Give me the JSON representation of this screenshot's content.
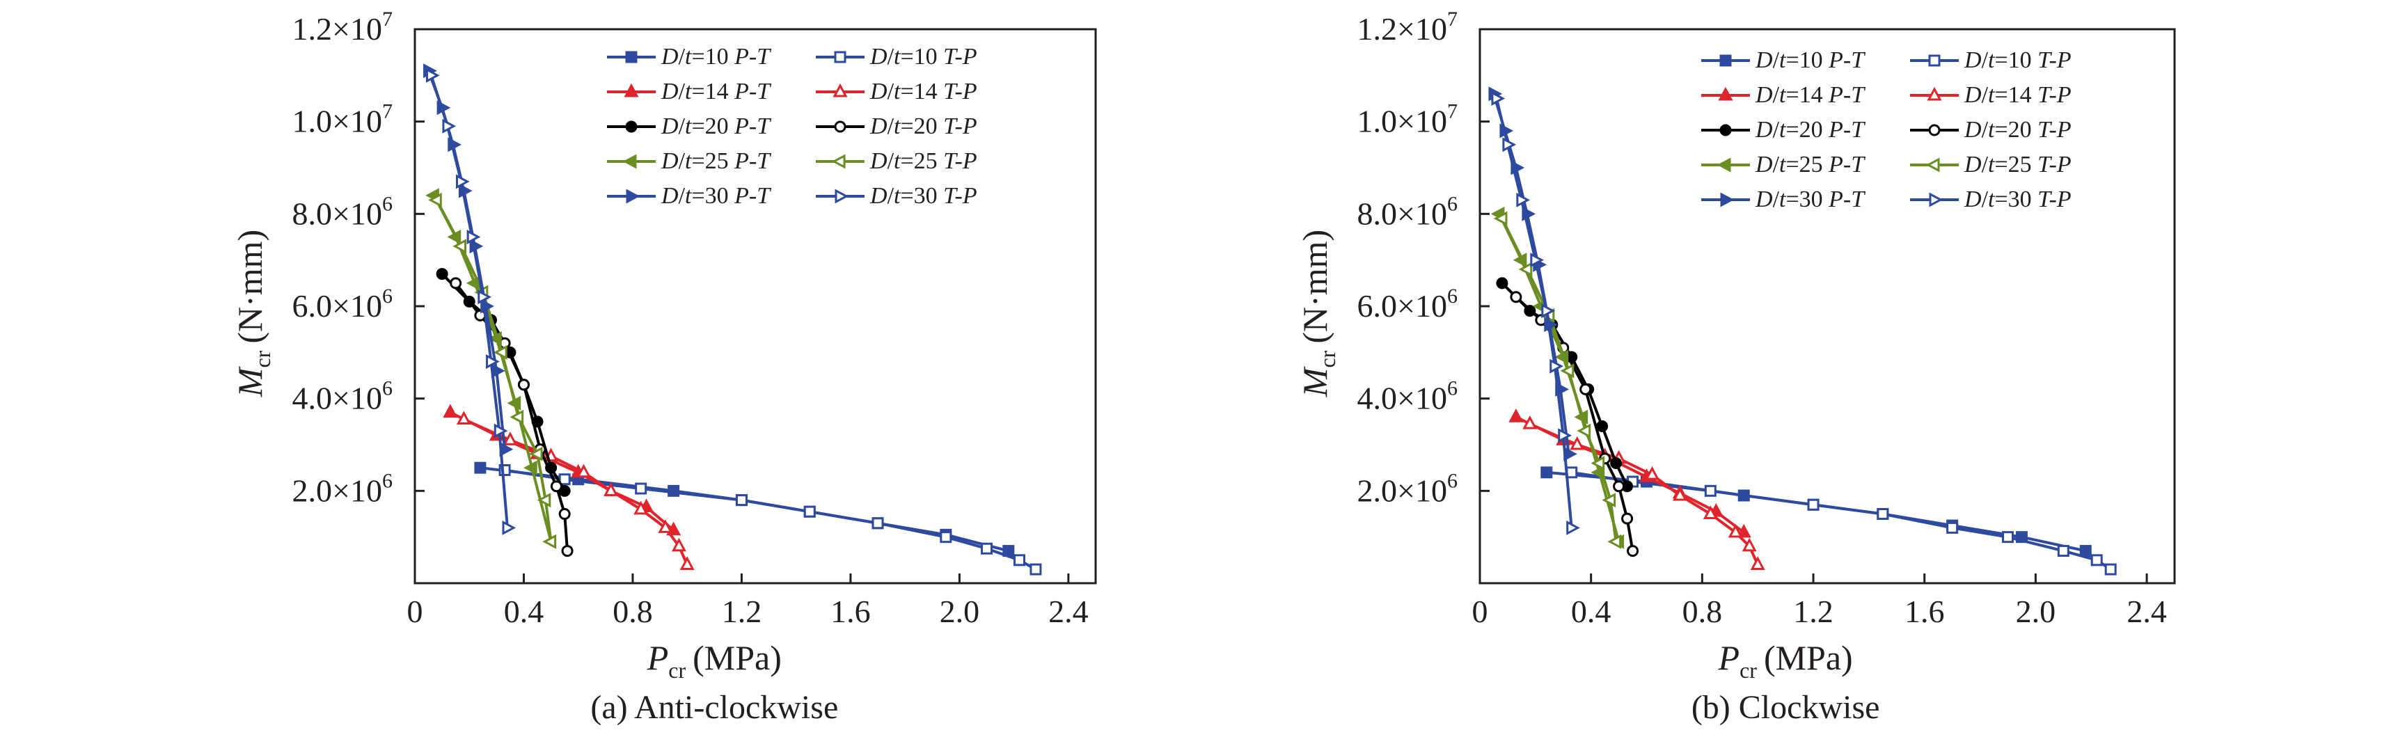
{
  "chart_data": [
    {
      "type": "line",
      "caption": "(a) Anti-clockwise",
      "xlabel": {
        "main": "P",
        "sub": "cr",
        "unit": "(MPa)"
      },
      "ylabel": {
        "main": "M",
        "sub": "cr",
        "unit": "(N·mm)"
      },
      "xlim": [
        0,
        2.5
      ],
      "ylim": [
        0,
        12000000
      ],
      "xticks": [
        {
          "v": 0,
          "label": "0"
        },
        {
          "v": 0.4,
          "label": "0.4"
        },
        {
          "v": 0.8,
          "label": "0.8"
        },
        {
          "v": 1.2,
          "label": "1.2"
        },
        {
          "v": 1.6,
          "label": "1.6"
        },
        {
          "v": 2.0,
          "label": "2.0"
        },
        {
          "v": 2.4,
          "label": "2.4"
        }
      ],
      "yticks": [
        {
          "v": 2000000,
          "mant": "2.0×10",
          "exp": "6"
        },
        {
          "v": 4000000,
          "mant": "4.0×10",
          "exp": "6"
        },
        {
          "v": 6000000,
          "mant": "6.0×10",
          "exp": "6"
        },
        {
          "v": 8000000,
          "mant": "8.0×10",
          "exp": "6"
        },
        {
          "v": 10000000,
          "mant": "1.0×10",
          "exp": "7"
        },
        {
          "v": 12000000,
          "mant": "1.2×10",
          "exp": "7"
        }
      ],
      "series": [
        {
          "name": "D/t=10 P-T",
          "dt": "10",
          "path": "P-T",
          "color": "#2e4a9e",
          "marker": "square",
          "filled": true,
          "x": [
            0.24,
            0.6,
            0.95,
            1.2,
            1.45,
            1.7,
            1.95,
            2.18
          ],
          "y": [
            2500000,
            2250000,
            2000000,
            1800000,
            1550000,
            1300000,
            1050000,
            700000
          ]
        },
        {
          "name": "D/t=10 T-P",
          "dt": "10",
          "path": "T-P",
          "color": "#2e4a9e",
          "marker": "square",
          "filled": false,
          "x": [
            0.33,
            0.55,
            0.83,
            1.2,
            1.45,
            1.7,
            1.95,
            2.1,
            2.22,
            2.28
          ],
          "y": [
            2450000,
            2250000,
            2050000,
            1800000,
            1550000,
            1300000,
            1000000,
            750000,
            500000,
            300000
          ]
        },
        {
          "name": "D/t=14 P-T",
          "dt": "14",
          "path": "P-T",
          "color": "#e0242b",
          "marker": "triangle",
          "filled": true,
          "x": [
            0.13,
            0.3,
            0.45,
            0.6,
            0.72,
            0.85,
            0.95
          ],
          "y": [
            3700000,
            3200000,
            2800000,
            2400000,
            2000000,
            1650000,
            1150000
          ]
        },
        {
          "name": "D/t=14 T-P",
          "dt": "14",
          "path": "T-P",
          "color": "#e0242b",
          "marker": "triangle",
          "filled": false,
          "x": [
            0.18,
            0.35,
            0.5,
            0.62,
            0.72,
            0.83,
            0.92,
            0.97,
            1.0
          ],
          "y": [
            3550000,
            3100000,
            2750000,
            2400000,
            2000000,
            1600000,
            1200000,
            800000,
            400000
          ]
        },
        {
          "name": "D/t=20 P-T",
          "dt": "20",
          "path": "P-T",
          "color": "#000000",
          "marker": "circle",
          "filled": true,
          "x": [
            0.1,
            0.2,
            0.28,
            0.35,
            0.4,
            0.45,
            0.5,
            0.55
          ],
          "y": [
            6700000,
            6100000,
            5700000,
            5000000,
            4300000,
            3500000,
            2500000,
            2000000
          ]
        },
        {
          "name": "D/t=20 T-P",
          "dt": "20",
          "path": "T-P",
          "color": "#000000",
          "marker": "circle",
          "filled": false,
          "x": [
            0.15,
            0.24,
            0.33,
            0.4,
            0.46,
            0.52,
            0.55,
            0.56
          ],
          "y": [
            6500000,
            5800000,
            5200000,
            4300000,
            2900000,
            2100000,
            1500000,
            700000
          ]
        },
        {
          "name": "D/t=25 P-T",
          "dt": "25",
          "path": "P-T",
          "color": "#6b8e23",
          "marker": "triangle-left",
          "filled": true,
          "x": [
            0.07,
            0.15,
            0.22,
            0.3,
            0.37,
            0.43,
            0.5
          ],
          "y": [
            8400000,
            7500000,
            6500000,
            5300000,
            3900000,
            2500000,
            900000
          ]
        },
        {
          "name": "D/t=25 T-P",
          "dt": "25",
          "path": "T-P",
          "color": "#6b8e23",
          "marker": "triangle-left",
          "filled": false,
          "x": [
            0.08,
            0.17,
            0.25,
            0.32,
            0.38,
            0.45,
            0.48,
            0.5
          ],
          "y": [
            8300000,
            7300000,
            6300000,
            5000000,
            3600000,
            2800000,
            1800000,
            900000
          ]
        },
        {
          "name": "D/t=30 P-T",
          "dt": "30",
          "path": "P-T",
          "color": "#2e4a9e",
          "marker": "triangle-right",
          "filled": true,
          "x": [
            0.05,
            0.1,
            0.14,
            0.18,
            0.22,
            0.26,
            0.3,
            0.33
          ],
          "y": [
            11100000,
            10300000,
            9500000,
            8500000,
            7300000,
            6000000,
            4600000,
            2900000
          ]
        },
        {
          "name": "D/t=30 T-P",
          "dt": "30",
          "path": "T-P",
          "color": "#2e4a9e",
          "marker": "triangle-right",
          "filled": false,
          "x": [
            0.06,
            0.12,
            0.17,
            0.21,
            0.25,
            0.28,
            0.31,
            0.34
          ],
          "y": [
            11000000,
            9900000,
            8700000,
            7500000,
            6200000,
            4800000,
            3300000,
            1200000
          ]
        }
      ]
    },
    {
      "type": "line",
      "caption": "(b) Clockwise",
      "xlabel": {
        "main": "P",
        "sub": "cr",
        "unit": "(MPa)"
      },
      "ylabel": {
        "main": "M",
        "sub": "cr",
        "unit": "(N·mm)"
      },
      "xlim": [
        0,
        2.5
      ],
      "ylim": [
        0,
        12000000
      ],
      "xticks": [
        {
          "v": 0,
          "label": "0"
        },
        {
          "v": 0.4,
          "label": "0.4"
        },
        {
          "v": 0.8,
          "label": "0.8"
        },
        {
          "v": 1.2,
          "label": "1.2"
        },
        {
          "v": 1.6,
          "label": "1.6"
        },
        {
          "v": 2.0,
          "label": "2.0"
        },
        {
          "v": 2.4,
          "label": "2.4"
        }
      ],
      "yticks": [
        {
          "v": 2000000,
          "mant": "2.0×10",
          "exp": "6"
        },
        {
          "v": 4000000,
          "mant": "4.0×10",
          "exp": "6"
        },
        {
          "v": 6000000,
          "mant": "6.0×10",
          "exp": "6"
        },
        {
          "v": 8000000,
          "mant": "8.0×10",
          "exp": "6"
        },
        {
          "v": 10000000,
          "mant": "1.0×10",
          "exp": "7"
        },
        {
          "v": 12000000,
          "mant": "1.2×10",
          "exp": "7"
        }
      ],
      "series": [
        {
          "name": "D/t=10 P-T",
          "dt": "10",
          "path": "P-T",
          "color": "#2e4a9e",
          "marker": "square",
          "filled": true,
          "x": [
            0.24,
            0.6,
            0.95,
            1.2,
            1.45,
            1.7,
            1.95,
            2.18
          ],
          "y": [
            2400000,
            2200000,
            1900000,
            1700000,
            1500000,
            1250000,
            1000000,
            700000
          ]
        },
        {
          "name": "D/t=10 T-P",
          "dt": "10",
          "path": "T-P",
          "color": "#2e4a9e",
          "marker": "square",
          "filled": false,
          "x": [
            0.33,
            0.55,
            0.83,
            1.2,
            1.45,
            1.7,
            1.9,
            2.1,
            2.22,
            2.27
          ],
          "y": [
            2400000,
            2200000,
            2000000,
            1700000,
            1500000,
            1200000,
            1000000,
            700000,
            500000,
            300000
          ]
        },
        {
          "name": "D/t=14 P-T",
          "dt": "14",
          "path": "P-T",
          "color": "#e0242b",
          "marker": "triangle",
          "filled": true,
          "x": [
            0.13,
            0.3,
            0.45,
            0.6,
            0.72,
            0.85,
            0.95
          ],
          "y": [
            3600000,
            3100000,
            2750000,
            2300000,
            1950000,
            1550000,
            1100000
          ]
        },
        {
          "name": "D/t=14 T-P",
          "dt": "14",
          "path": "T-P",
          "color": "#e0242b",
          "marker": "triangle",
          "filled": false,
          "x": [
            0.18,
            0.35,
            0.5,
            0.62,
            0.72,
            0.83,
            0.92,
            0.97,
            1.0
          ],
          "y": [
            3450000,
            3000000,
            2700000,
            2350000,
            1900000,
            1500000,
            1100000,
            800000,
            400000
          ]
        },
        {
          "name": "D/t=20 P-T",
          "dt": "20",
          "path": "P-T",
          "color": "#000000",
          "marker": "circle",
          "filled": true,
          "x": [
            0.08,
            0.18,
            0.26,
            0.33,
            0.39,
            0.44,
            0.49,
            0.53
          ],
          "y": [
            6500000,
            5900000,
            5600000,
            4900000,
            4200000,
            3400000,
            2600000,
            2100000
          ]
        },
        {
          "name": "D/t=20 T-P",
          "dt": "20",
          "path": "T-P",
          "color": "#000000",
          "marker": "circle",
          "filled": false,
          "x": [
            0.13,
            0.22,
            0.3,
            0.38,
            0.45,
            0.5,
            0.53,
            0.55
          ],
          "y": [
            6200000,
            5700000,
            5100000,
            4200000,
            2700000,
            2100000,
            1400000,
            700000
          ]
        },
        {
          "name": "D/t=25 P-T",
          "dt": "25",
          "path": "P-T",
          "color": "#6b8e23",
          "marker": "triangle-left",
          "filled": true,
          "x": [
            0.07,
            0.15,
            0.22,
            0.3,
            0.37,
            0.43,
            0.5
          ],
          "y": [
            8000000,
            7000000,
            6000000,
            4900000,
            3600000,
            2400000,
            900000
          ]
        },
        {
          "name": "D/t=25 T-P",
          "dt": "25",
          "path": "T-P",
          "color": "#6b8e23",
          "marker": "triangle-left",
          "filled": false,
          "x": [
            0.08,
            0.17,
            0.25,
            0.32,
            0.38,
            0.43,
            0.47,
            0.49
          ],
          "y": [
            7900000,
            6800000,
            5800000,
            4600000,
            3300000,
            2600000,
            1800000,
            900000
          ]
        },
        {
          "name": "D/t=30 P-T",
          "dt": "30",
          "path": "P-T",
          "color": "#2e4a9e",
          "marker": "triangle-right",
          "filled": true,
          "x": [
            0.05,
            0.09,
            0.13,
            0.17,
            0.21,
            0.25,
            0.29,
            0.32
          ],
          "y": [
            10600000,
            9800000,
            9000000,
            8000000,
            6900000,
            5600000,
            4200000,
            2800000
          ]
        },
        {
          "name": "D/t=30 T-P",
          "dt": "30",
          "path": "T-P",
          "color": "#2e4a9e",
          "marker": "triangle-right",
          "filled": false,
          "x": [
            0.06,
            0.1,
            0.15,
            0.2,
            0.24,
            0.27,
            0.3,
            0.33
          ],
          "y": [
            10500000,
            9500000,
            8300000,
            7000000,
            5900000,
            4700000,
            3200000,
            1200000
          ]
        }
      ]
    }
  ]
}
